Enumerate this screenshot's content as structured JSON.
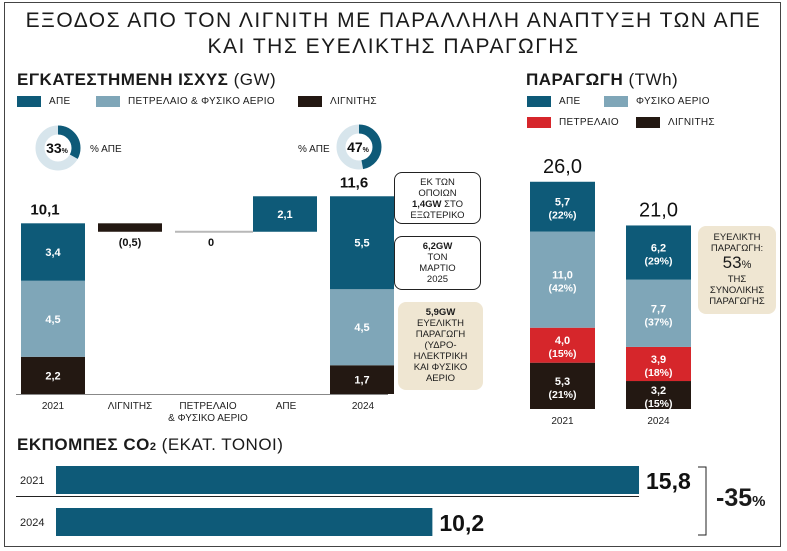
{
  "title_line1": "ΕΞΟΔΟΣ ΑΠΟ ΤΟΝ ΛΙΓΝΙΤΗ ΜΕ ΠΑΡΑΛΛΗΛΗ ΑΝΑΠΤΥΞΗ ΤΩΝ ΑΠΕ",
  "title_line2": "ΚΑΙ ΤΗΣ ΕΥΕΛΙΚΤΗΣ ΠΑΡΑΓΩΓΗΣ",
  "colors": {
    "ape": "#0e5a78",
    "gas": "#7fa6b8",
    "lignite": "#231812",
    "oil": "#d6262b",
    "beige": "#efe6d2"
  },
  "capacity": {
    "title": "ΕΓΚΑΤΕΣΤΗΜΕΝΗ ΙΣΧΥΣ",
    "unit": "(GW)",
    "legend": {
      "ape": "ΑΠΕ",
      "gas": "ΠΕΤΡΕΛΑΙΟ & ΦΥΣΙΚΟ ΑΕΡΙΟ",
      "lignite": "ΛΙΓΝΙΤΗΣ"
    },
    "donut_2021": {
      "value": "33",
      "suffix": "%",
      "label": "% ΑΠΕ"
    },
    "donut_2024": {
      "value": "47",
      "suffix": "%",
      "label": "% ΑΠΕ"
    },
    "callout_abroad": {
      "l1": "ΕΚ ΤΩΝ",
      "l2": "ΟΠΟΙΩΝ",
      "l3b": "1,4GW",
      "l3": " ΣΤΟ",
      "l4": "ΕΞΩΤΕΡΙΚΟ"
    },
    "callout_march": {
      "l1": "6,2GW",
      "l2": "ΤΟΝ",
      "l3": "ΜΑΡΤΙΟ",
      "l4": "2025"
    },
    "callout_flex": {
      "l1": "5,9GW",
      "l2": "ΕΥΕΛΙΚΤΗ",
      "l3": "ΠΑΡΑΓΩΓΗ",
      "l4": "(ΥΔΡΟ-",
      "l5": "ΗΛΕΚΤΡΙΚΗ",
      "l6": "ΚΑΙ ΦΥΣΙΚΟ",
      "l7": "ΑΕΡΙΟ"
    }
  },
  "production": {
    "title": "ΠΑΡΑΓΩΓΗ",
    "unit": "(TWh)",
    "legend": {
      "ape": "ΑΠΕ",
      "gas": "ΦΥΣΙΚΟ ΑΕΡΙΟ",
      "oil": "ΠΕΤΡΕΛΑΙΟ",
      "lignite": "ΛΙΓΝΙΤΗΣ"
    },
    "callout": {
      "l1": "ΕΥΕΛΙΚΤΗ",
      "l2": "ΠΑΡΑΓΩΓΗ:",
      "big": "53",
      "pct": "%",
      "l3": "ΤΗΣ",
      "l4": "ΣΥΝΟΛΙΚΗΣ",
      "l5": "ΠΑΡΑΓΩΓΗΣ"
    }
  },
  "emissions": {
    "title": "ΕΚΠΟΜΠΕΣ CO",
    "sub": "2",
    "unit": " (ΕΚΑΤ. ΤΟΝΟΙ)",
    "change": "-35",
    "change_pct": "%"
  },
  "chart_data": [
    {
      "type": "bar",
      "title": "ΕΓΚΑΤΕΣΤΗΜΕΝΗ ΙΣΧΥΣ (GW)",
      "categories": [
        "2021",
        "ΛΙΓΝΙΤΗΣ",
        "ΠΕΤΡΕΛΑΙΟ & ΦΥΣΙΚΟ ΑΕΡΙΟ",
        "ΑΠΕ",
        "2024"
      ],
      "stacks": [
        {
          "category": "2021",
          "total": 10.1,
          "total_label": "10,1",
          "segments": [
            {
              "series": "lignite",
              "value": 2.2,
              "label": "2,2"
            },
            {
              "series": "gas",
              "value": 4.5,
              "label": "4,5"
            },
            {
              "series": "ape",
              "value": 3.4,
              "label": "3,4"
            }
          ]
        },
        {
          "category": "2024",
          "total": 11.6,
          "total_label": "11,6",
          "segments": [
            {
              "series": "lignite",
              "value": 1.7,
              "label": "1,7"
            },
            {
              "series": "gas",
              "value": 4.5,
              "label": "4,5"
            },
            {
              "series": "ape",
              "value": 5.5,
              "label": "5,5"
            }
          ]
        }
      ],
      "changes": [
        {
          "category": "ΛΙΓΝΙΤΗΣ",
          "value": -0.5,
          "label": "(0,5)",
          "series": "lignite"
        },
        {
          "category": "ΠΕΤΡΕΛΑΙΟ & ΦΥΣΙΚΟ ΑΕΡΙΟ",
          "value": 0,
          "label": "0",
          "series": "gas"
        },
        {
          "category": "ΑΠΕ",
          "value": 2.1,
          "label": "2,1",
          "series": "ape"
        }
      ],
      "ape_share_pct": {
        "2021": 33,
        "2024": 47
      }
    },
    {
      "type": "bar",
      "title": "ΠΑΡΑΓΩΓΗ (TWh)",
      "categories": [
        "2021",
        "2024"
      ],
      "stacks": [
        {
          "category": "2021",
          "total": 26.0,
          "total_label": "26,0",
          "segments": [
            {
              "series": "lignite",
              "value": 5.3,
              "label": "5,3",
              "pct": "(21%)"
            },
            {
              "series": "oil",
              "value": 4.0,
              "label": "4,0",
              "pct": "(15%)"
            },
            {
              "series": "gas",
              "value": 11.0,
              "label": "11,0",
              "pct": "(42%)"
            },
            {
              "series": "ape",
              "value": 5.7,
              "label": "5,7",
              "pct": "(22%)"
            }
          ]
        },
        {
          "category": "2024",
          "total": 21.0,
          "total_label": "21,0",
          "segments": [
            {
              "series": "lignite",
              "value": 3.2,
              "label": "3,2",
              "pct": "(15%)"
            },
            {
              "series": "oil",
              "value": 3.9,
              "label": "3,9",
              "pct": "(18%)"
            },
            {
              "series": "gas",
              "value": 7.7,
              "label": "7,7",
              "pct": "(37%)"
            },
            {
              "series": "ape",
              "value": 6.2,
              "label": "6,2",
              "pct": "(29%)"
            }
          ]
        }
      ]
    },
    {
      "type": "bar",
      "orientation": "horizontal",
      "title": "ΕΚΠΟΜΠΕΣ CO2 (ΕΚΑΤ. ΤΟΝΟΙ)",
      "categories": [
        "2021",
        "2024"
      ],
      "values": [
        15.8,
        10.2
      ],
      "value_labels": [
        "15,8",
        "10,2"
      ]
    }
  ]
}
